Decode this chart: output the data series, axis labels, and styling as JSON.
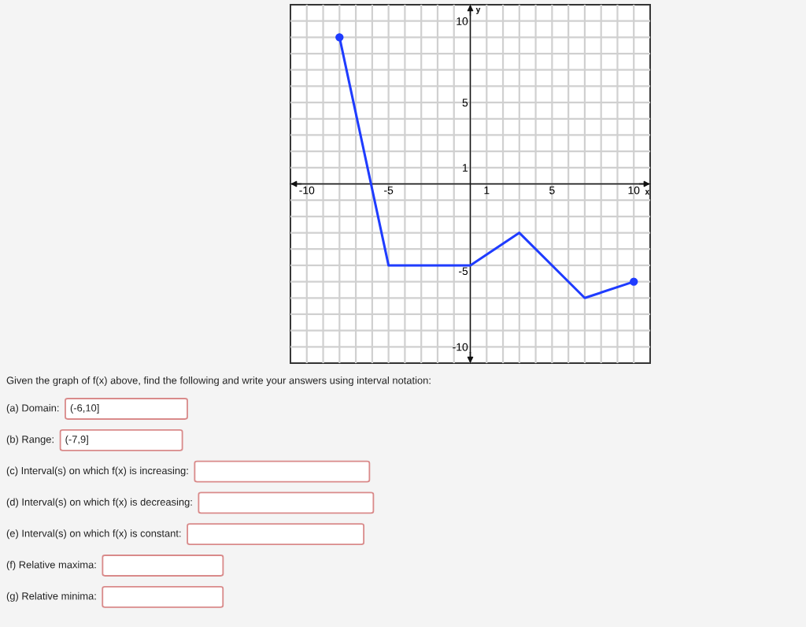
{
  "chart_data": {
    "type": "line",
    "xlabel": "x",
    "ylabel": "y",
    "xlim": [
      -11,
      11
    ],
    "ylim": [
      -11,
      11
    ],
    "xticks": [
      -10,
      {
        "value": -9,
        "label": null
      },
      {
        "value": -8,
        "label": null
      },
      {
        "value": -7,
        "label": null
      },
      {
        "value": -6,
        "label": null
      },
      -5,
      {
        "value": -4,
        "label": null
      },
      {
        "value": -3,
        "label": null
      },
      {
        "value": -2,
        "label": null
      },
      {
        "value": -1,
        "label": null
      },
      {
        "value": 0,
        "label": null
      },
      1,
      {
        "value": 2,
        "label": null
      },
      {
        "value": 3,
        "label": null
      },
      {
        "value": 4,
        "label": null
      },
      5,
      {
        "value": 6,
        "label": null
      },
      {
        "value": 7,
        "label": null
      },
      {
        "value": 8,
        "label": null
      },
      {
        "value": 9,
        "label": null
      },
      10
    ],
    "yticks": [
      -10,
      {
        "value": -9,
        "label": null
      },
      {
        "value": -8,
        "label": null
      },
      {
        "value": -7,
        "label": null
      },
      {
        "value": -6,
        "label": null
      },
      -5,
      {
        "value": -4,
        "label": null
      },
      {
        "value": -3,
        "label": null
      },
      {
        "value": -2,
        "label": null
      },
      {
        "value": -1,
        "label": null
      },
      {
        "value": 0,
        "label": null
      },
      1,
      {
        "value": 2,
        "label": null
      },
      {
        "value": 3,
        "label": null
      },
      {
        "value": 4,
        "label": null
      },
      5,
      {
        "value": 6,
        "label": null
      },
      {
        "value": 7,
        "label": null
      },
      {
        "value": 8,
        "label": null
      },
      {
        "value": 9,
        "label": null
      },
      10
    ],
    "grid": true,
    "series": [
      {
        "color": "#1f3cff",
        "x": [
          -8,
          -5,
          0,
          3,
          7,
          10
        ],
        "values": [
          9,
          -5,
          -5,
          -3,
          -7,
          -6
        ]
      },
      {
        "type": "scatter",
        "marker": "circle",
        "color": "#1f3cff",
        "x": [
          -8,
          10
        ],
        "values": [
          9,
          -6
        ]
      }
    ],
    "annotations": [
      "Given the graph of f(x) above, find the following and write your answers using interval notation:",
      "(a) Domain:",
      "(-6,10]",
      "(b) Range:",
      "(-7,9]",
      "(c) Interval(s) on which f(x) is increasing:",
      "(d) Interval(s) on which f(x) is decreasing:",
      "(e) Interval(s) on which f(x) is constant:",
      "(f) Relative maxima:",
      "(g) Relative minima:"
    ]
  }
}
